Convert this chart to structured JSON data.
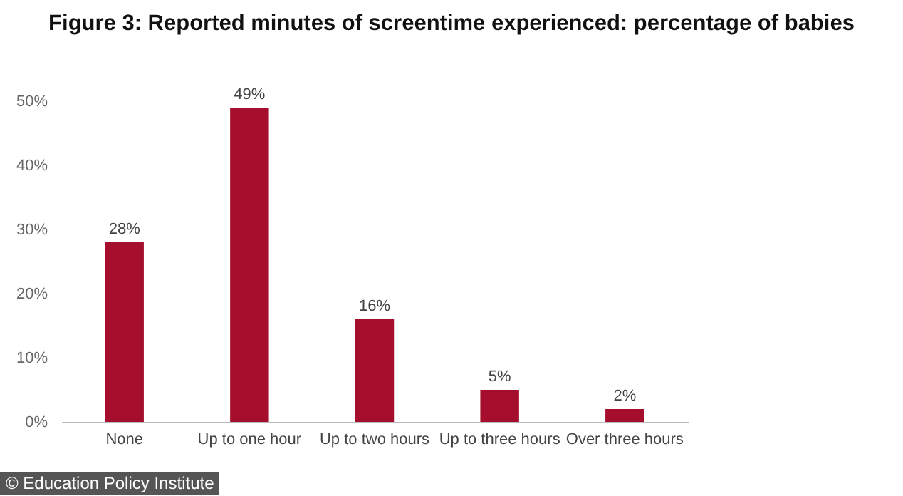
{
  "chart_data": {
    "type": "bar",
    "title": "Figure 3: Reported minutes of screentime experienced: percentage of babies",
    "categories": [
      "None",
      "Up to one hour",
      "Up to two hours",
      "Up to three hours",
      "Over three hours"
    ],
    "values": [
      28,
      49,
      16,
      5,
      2
    ],
    "color": "#a50f2d",
    "value_labels": [
      "28%",
      "49%",
      "16%",
      "5%",
      "2%"
    ],
    "ylim": [
      0,
      50
    ],
    "yticks": [
      {
        "value": 0,
        "label": "0%"
      },
      {
        "value": 10,
        "label": "10%"
      },
      {
        "value": 20,
        "label": "20%"
      },
      {
        "value": 30,
        "label": "30%"
      },
      {
        "value": 40,
        "label": "40%"
      },
      {
        "value": 50,
        "label": "50%"
      }
    ],
    "grid": false,
    "annotations": [
      "© Education Policy Institute"
    ]
  }
}
